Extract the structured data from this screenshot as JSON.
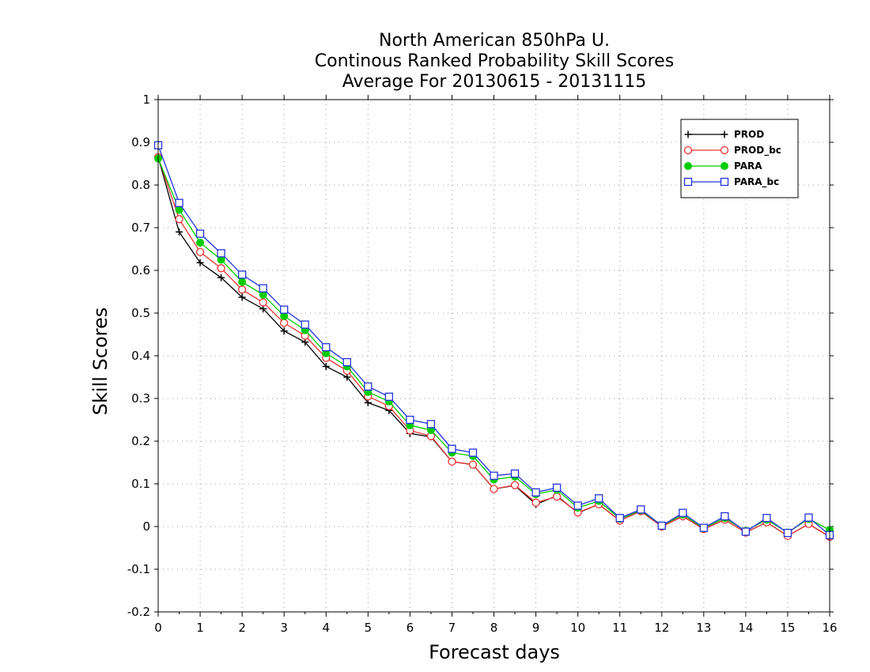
{
  "chart_data": {
    "type": "line",
    "title_lines": [
      "North American 850hPa U.",
      "Continous Ranked Probability Skill Scores",
      "Average For 20130615 - 20131115"
    ],
    "xlabel": "Forecast days",
    "ylabel": "Skill Scores",
    "xlim": [
      0,
      16
    ],
    "ylim": [
      -0.2,
      1
    ],
    "x_ticks": [
      "0",
      "1",
      "2",
      "3",
      "4",
      "5",
      "6",
      "7",
      "8",
      "9",
      "10",
      "11",
      "12",
      "13",
      "14",
      "15",
      "16"
    ],
    "y_ticks": [
      "-0.2",
      "-0.1",
      "0",
      "0.1",
      "0.2",
      "0.3",
      "0.4",
      "0.5",
      "0.6",
      "0.7",
      "0.8",
      "0.9",
      "1"
    ],
    "grid": true,
    "legend_position": "top-right",
    "x": [
      0,
      0.5,
      1,
      1.5,
      2,
      2.5,
      3,
      3.5,
      4,
      4.5,
      5,
      5.5,
      6,
      6.5,
      7,
      7.5,
      8,
      8.5,
      9,
      9.5,
      10,
      10.5,
      11,
      11.5,
      12,
      12.5,
      13,
      13.5,
      14,
      14.5,
      15,
      15.5,
      16
    ],
    "series": [
      {
        "name": "PROD",
        "color": "#000000",
        "marker": "plus",
        "values": [
          0.865,
          0.69,
          0.618,
          0.583,
          0.537,
          0.51,
          0.458,
          0.432,
          0.375,
          0.35,
          0.29,
          0.272,
          0.218,
          0.21,
          0.152,
          0.145,
          0.088,
          0.096,
          0.052,
          0.072,
          0.032,
          0.052,
          0.014,
          0.036,
          0.0,
          0.024,
          -0.006,
          0.016,
          -0.014,
          0.01,
          -0.022,
          0.006,
          -0.024
        ]
      },
      {
        "name": "PROD_bc",
        "color": "#ee3333",
        "marker": "circle-open",
        "values": [
          0.865,
          0.72,
          0.643,
          0.605,
          0.555,
          0.525,
          0.477,
          0.447,
          0.395,
          0.365,
          0.305,
          0.282,
          0.225,
          0.212,
          0.152,
          0.145,
          0.088,
          0.097,
          0.056,
          0.07,
          0.033,
          0.052,
          0.014,
          0.036,
          0.0,
          0.024,
          -0.006,
          0.016,
          -0.014,
          0.01,
          -0.022,
          0.006,
          -0.024
        ]
      },
      {
        "name": "PARA",
        "color": "#00cc00",
        "marker": "circle-filled",
        "values": [
          0.862,
          0.742,
          0.665,
          0.625,
          0.573,
          0.543,
          0.493,
          0.46,
          0.406,
          0.375,
          0.315,
          0.293,
          0.237,
          0.226,
          0.173,
          0.165,
          0.11,
          0.117,
          0.076,
          0.086,
          0.044,
          0.06,
          0.018,
          0.038,
          0.002,
          0.028,
          -0.004,
          0.02,
          -0.01,
          0.016,
          -0.014,
          0.018,
          -0.008
        ]
      },
      {
        "name": "PARA_bc",
        "color": "#2233dd",
        "marker": "square-open",
        "values": [
          0.893,
          0.758,
          0.686,
          0.64,
          0.59,
          0.558,
          0.508,
          0.473,
          0.42,
          0.385,
          0.328,
          0.304,
          0.25,
          0.24,
          0.182,
          0.173,
          0.119,
          0.124,
          0.08,
          0.091,
          0.049,
          0.066,
          0.02,
          0.04,
          0.002,
          0.032,
          -0.003,
          0.024,
          -0.012,
          0.02,
          -0.015,
          0.021,
          -0.02
        ]
      }
    ]
  }
}
